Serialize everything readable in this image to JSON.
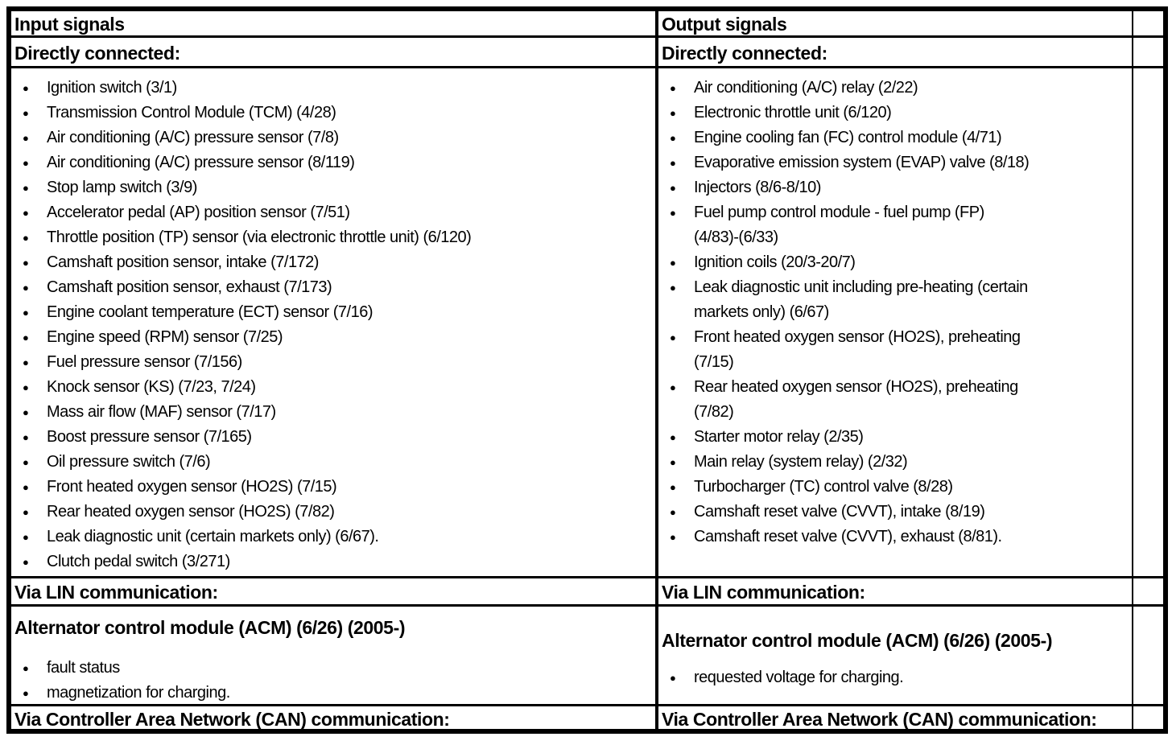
{
  "colors": {
    "border": "#000000",
    "text": "#000000",
    "background": "#ffffff"
  },
  "input": {
    "header": "Input signals",
    "direct_title": "Directly connected:",
    "direct_items": [
      "Ignition switch (3/1)",
      "Transmission Control Module (TCM) (4/28)",
      "Air conditioning (A/C) pressure sensor (7/8)",
      "Air conditioning (A/C) pressure sensor (8/119)",
      "Stop lamp switch (3/9)",
      "Accelerator pedal (AP) position sensor (7/51)",
      "Throttle position (TP) sensor (via electronic throttle unit) (6/120)",
      "Camshaft position sensor, intake (7/172)",
      "Camshaft position sensor, exhaust (7/173)",
      "Engine coolant temperature (ECT) sensor (7/16)",
      "Engine speed (RPM) sensor (7/25)",
      "Fuel pressure sensor (7/156)",
      "Knock sensor (KS) (7/23, 7/24)",
      "Mass air flow (MAF) sensor (7/17)",
      "Boost pressure sensor (7/165)",
      "Oil pressure switch (7/6)",
      "Front heated oxygen sensor (HO2S) (7/15)",
      "Rear heated oxygen sensor (HO2S) (7/82)",
      "Leak diagnostic unit (certain markets only) (6/67).",
      "Clutch pedal switch (3/271)"
    ],
    "lin_title": "Via LIN communication:",
    "acm_title": "Alternator control module (ACM) (6/26) (2005-)",
    "acm_items": [
      "fault status",
      "magnetization for charging."
    ],
    "can_title": "Via Controller Area Network (CAN) communication:"
  },
  "output": {
    "header": "Output signals",
    "direct_title": "Directly connected:",
    "direct_items": [
      "Air conditioning (A/C) relay (2/22)",
      "Electronic throttle unit (6/120)",
      "Engine cooling fan (FC) control module (4/71)",
      "Evaporative emission system (EVAP) valve (8/18)",
      "Injectors (8/6-8/10)",
      [
        "Fuel pump control module - fuel pump (FP)",
        "(4/83)-(6/33)"
      ],
      "Ignition coils (20/3-20/7)",
      [
        "Leak diagnostic unit including pre-heating (certain",
        "markets only) (6/67)"
      ],
      [
        "Front heated oxygen sensor (HO2S), preheating",
        "(7/15)"
      ],
      [
        "Rear heated oxygen sensor (HO2S), preheating",
        "(7/82)"
      ],
      "Starter motor relay (2/35)",
      "Main relay (system relay) (2/32)",
      "Turbocharger (TC) control valve (8/28)",
      "Camshaft reset valve (CVVT), intake (8/19)",
      "Camshaft reset valve (CVVT), exhaust (8/81)."
    ],
    "lin_title": "Via LIN communication:",
    "acm_title": "Alternator control module (ACM) (6/26) (2005-)",
    "acm_items": [
      "requested voltage for charging."
    ],
    "can_title": "Via Controller Area Network (CAN) communication:"
  }
}
